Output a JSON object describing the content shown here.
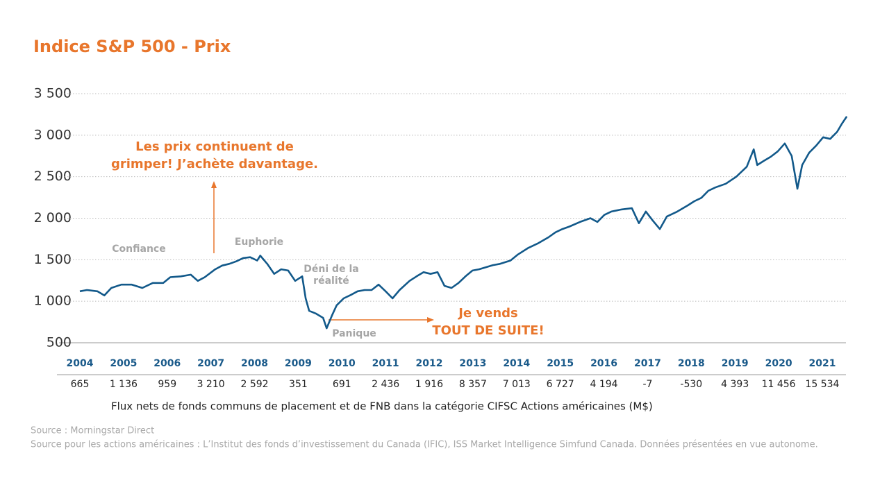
{
  "chart_data": {
    "type": "line",
    "title": "Indice S&P 500 - Prix",
    "ylim": [
      500,
      3500
    ],
    "yticks": [
      500,
      {
        "value": 1000,
        "label": "1 000"
      },
      {
        "value": 1500,
        "label": "1 500"
      },
      {
        "value": 2000,
        "label": "2 000"
      },
      {
        "value": 2500,
        "label": "2 500"
      },
      {
        "value": 3000,
        "label": "3 000"
      },
      {
        "value": 3500,
        "label": "3 500"
      }
    ],
    "xlim": [
      2004,
      2021.6
    ],
    "xticks": [
      2004,
      2005,
      2006,
      2007,
      2008,
      2009,
      2010,
      2011,
      2012,
      2013,
      2014,
      2015,
      2016,
      2017,
      2018,
      2019,
      2020,
      2021
    ],
    "grid": true,
    "series": [
      {
        "name": "S&P 500",
        "color": "#12598a",
        "x": [
          2004,
          2004.16,
          2004.4,
          2004.56,
          2004.72,
          2004.95,
          2005.19,
          2005.43,
          2005.67,
          2005.91,
          2006.07,
          2006.31,
          2006.54,
          2006.7,
          2006.86,
          2007.1,
          2007.26,
          2007.42,
          2007.58,
          2007.74,
          2007.9,
          2008.06,
          2008.13,
          2008.29,
          2008.45,
          2008.61,
          2008.77,
          2008.93,
          2009.09,
          2009.17,
          2009.25,
          2009.41,
          2009.57,
          2009.65,
          2009.77,
          2009.88,
          2010.04,
          2010.2,
          2010.36,
          2010.52,
          2010.68,
          2010.84,
          2011.0,
          2011.16,
          2011.32,
          2011.55,
          2011.71,
          2011.87,
          2012.03,
          2012.19,
          2012.35,
          2012.51,
          2012.67,
          2012.83,
          2012.99,
          2013.14,
          2013.3,
          2013.46,
          2013.62,
          2013.86,
          2014.02,
          2014.26,
          2014.5,
          2014.73,
          2014.89,
          2015.05,
          2015.21,
          2015.45,
          2015.69,
          2015.85,
          2016.01,
          2016.17,
          2016.4,
          2016.64,
          2016.8,
          2016.96,
          2017.12,
          2017.28,
          2017.44,
          2017.68,
          2017.92,
          2018.07,
          2018.23,
          2018.39,
          2018.55,
          2018.79,
          2019.03,
          2019.27,
          2019.43,
          2019.51,
          2019.66,
          2019.82,
          2019.98,
          2020.14,
          2020.3,
          2020.43,
          2020.54,
          2020.7,
          2020.86,
          2021.02,
          2021.18,
          2021.34,
          2021.45,
          2021.56
        ],
        "values": [
          1120,
          1135,
          1120,
          1070,
          1160,
          1200,
          1200,
          1160,
          1220,
          1220,
          1290,
          1300,
          1320,
          1245,
          1290,
          1385,
          1430,
          1450,
          1480,
          1520,
          1530,
          1490,
          1550,
          1450,
          1330,
          1385,
          1370,
          1245,
          1300,
          1035,
          885,
          850,
          800,
          675,
          825,
          950,
          1035,
          1075,
          1120,
          1135,
          1135,
          1200,
          1120,
          1035,
          1135,
          1245,
          1300,
          1350,
          1330,
          1350,
          1185,
          1160,
          1220,
          1300,
          1370,
          1385,
          1410,
          1435,
          1450,
          1490,
          1560,
          1640,
          1700,
          1770,
          1830,
          1870,
          1900,
          1955,
          2000,
          1955,
          2040,
          2080,
          2105,
          2120,
          1940,
          2080,
          1970,
          1870,
          2020,
          2080,
          2155,
          2205,
          2245,
          2330,
          2370,
          2415,
          2500,
          2620,
          2830,
          2640,
          2690,
          2740,
          2805,
          2900,
          2750,
          2355,
          2640,
          2790,
          2875,
          2975,
          2955,
          3040,
          3140,
          3225
        ]
      }
    ],
    "annotations": [
      {
        "lines": [
          "Confiance"
        ],
        "color": "#a6a6a6"
      },
      {
        "lines": [
          "Euphorie"
        ],
        "color": "#a6a6a6"
      },
      {
        "lines": [
          "Déni de la",
          "réalité"
        ],
        "color": "#a6a6a6"
      },
      {
        "lines": [
          "Panique"
        ],
        "color": "#a6a6a6"
      },
      {
        "lines": [
          "Les prix continuent de",
          "grimper! J’achète davantage."
        ],
        "color": "#e8762c"
      },
      {
        "lines": [
          "Je vends",
          "TOUT DE SUITE!"
        ],
        "color": "#e8762c"
      }
    ],
    "flows": {
      "label": "Flux nets de fonds communs de placement et de FNB dans la catégorie CIFSC Actions américaines (M$)",
      "values": [
        665,
        1136,
        959,
        3210,
        2592,
        351,
        691,
        2436,
        1916,
        8357,
        7013,
        6727,
        4194,
        -7,
        -530,
        4393,
        11456,
        15534
      ],
      "value_labels": [
        "665",
        "1 136",
        "959",
        "3 210",
        "2 592",
        "351",
        "691",
        "2 436",
        "1 916",
        "8 357",
        "7 013",
        "6 727",
        "4 194",
        "-7",
        "-530",
        "4 393",
        "11 456",
        "15 534"
      ]
    },
    "sources": [
      "Source : Morningstar Direct",
      "Source pour les actions américaines : L’Institut des fonds d’investissement du Canada (IFIC), ISS Market Intelligence Simfund Canada. Données présentées en vue autonome."
    ]
  }
}
